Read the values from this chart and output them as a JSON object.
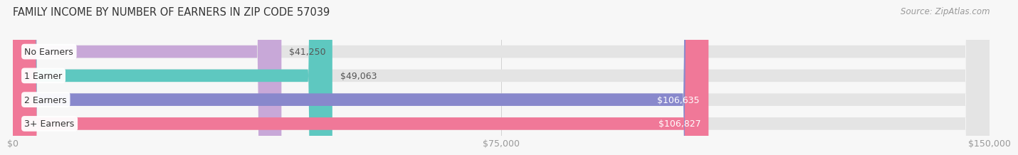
{
  "title": "FAMILY INCOME BY NUMBER OF EARNERS IN ZIP CODE 57039",
  "source": "Source: ZipAtlas.com",
  "categories": [
    "No Earners",
    "1 Earner",
    "2 Earners",
    "3+ Earners"
  ],
  "values": [
    41250,
    49063,
    106635,
    106827
  ],
  "bar_colors": [
    "#c8a8d8",
    "#5ec8c0",
    "#8888cc",
    "#f07898"
  ],
  "bar_bg_color": "#e4e4e4",
  "label_bg_colors": [
    "#c8a8d8",
    "#5ec8c0",
    "#8888cc",
    "#f07898"
  ],
  "value_colors": [
    "#555555",
    "#555555",
    "#ffffff",
    "#ffffff"
  ],
  "xlim": [
    0,
    150000
  ],
  "xticks": [
    0,
    75000,
    150000
  ],
  "xtick_labels": [
    "$0",
    "$75,000",
    "$150,000"
  ],
  "title_fontsize": 10.5,
  "source_fontsize": 8.5,
  "tick_fontsize": 9,
  "label_fontsize": 9,
  "value_fontsize": 9,
  "background_color": "#f7f7f7",
  "bar_height": 0.52,
  "value_threshold": 60000
}
